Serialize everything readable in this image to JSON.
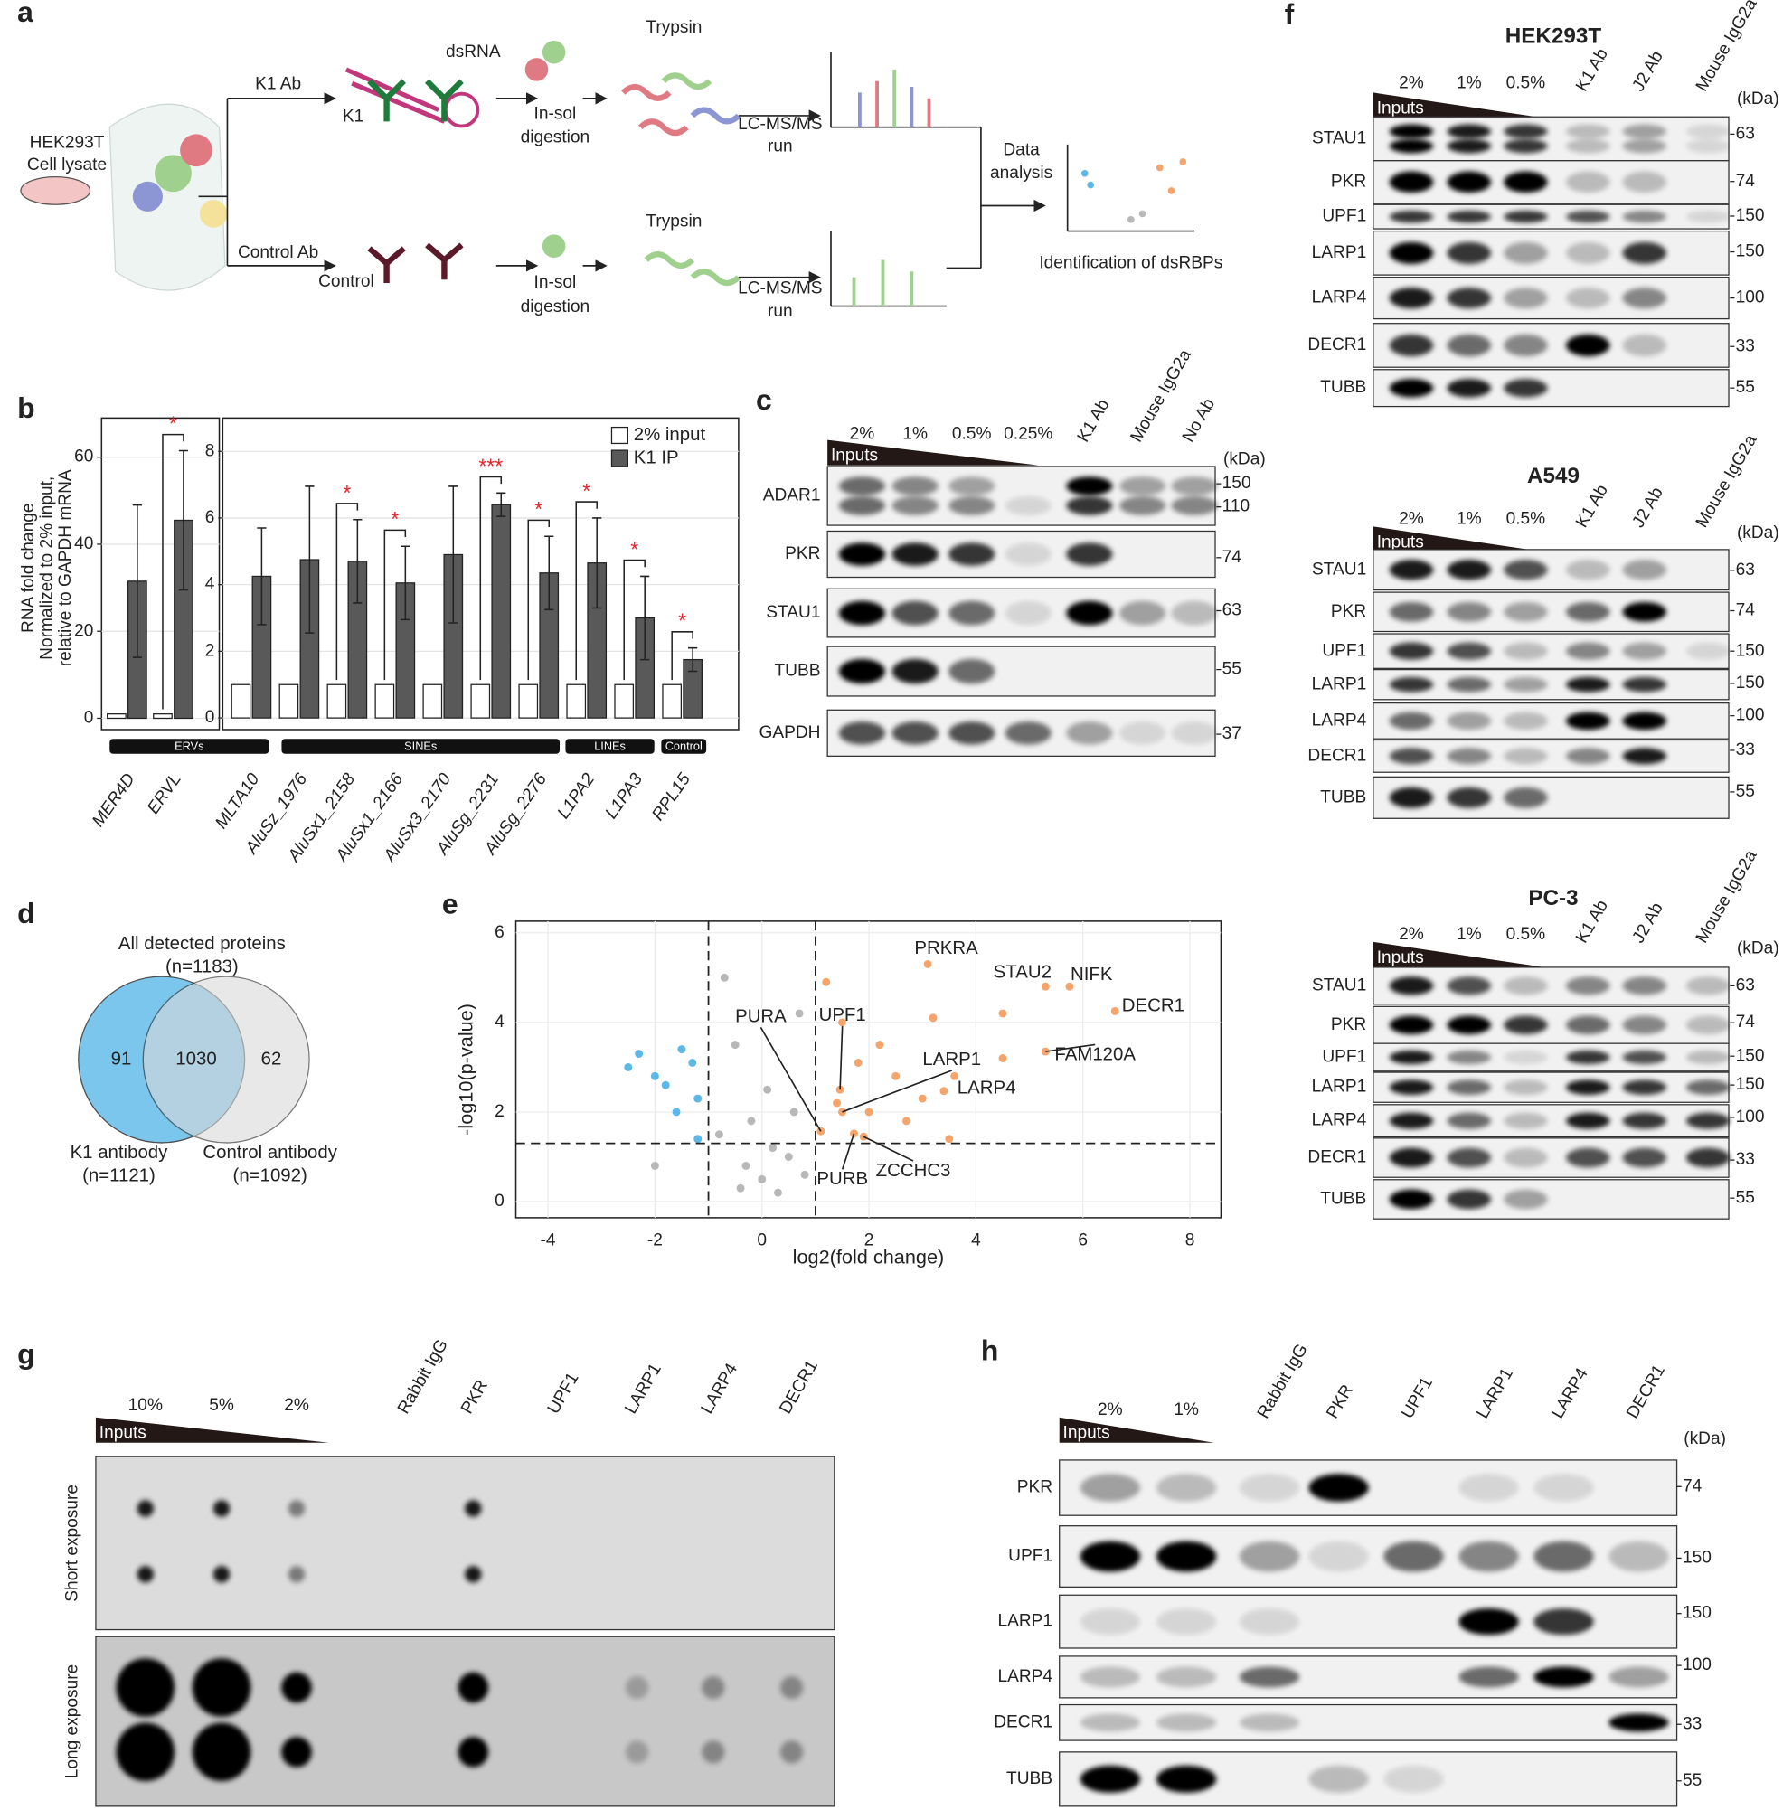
{
  "labels": [
    "a",
    "b",
    "c",
    "d",
    "e",
    "f",
    "g",
    "h"
  ],
  "a": {
    "cell_line": "HEK293T",
    "lysate": "Cell lysate",
    "k1_ab": "K1 Ab",
    "control_ab": "Control Ab",
    "dsrna": "dsRNA",
    "k1": "K1",
    "control": "Control",
    "in_sol": [
      "In-sol",
      "In-sol"
    ],
    "digestion": [
      "digestion",
      "digestion"
    ],
    "trypsin": [
      "Trypsin",
      "Trypsin"
    ],
    "lcms": [
      "LC-MS/MS",
      "LC-MS/MS"
    ],
    "run": [
      "run",
      "run"
    ],
    "data_analysis": [
      "Data",
      "analysis"
    ],
    "identification": "Identification of dsRBPs"
  },
  "b_groups": [
    "ERVs",
    "SINEs",
    "LINEs",
    "Control"
  ],
  "chart_data": [
    {
      "type": "bar",
      "categories": [
        "MER4D",
        "ERVL"
      ],
      "series": [
        {
          "color": "#ffffff",
          "values": [
            1,
            1
          ]
        },
        {
          "color": "#595959",
          "values": [
            31.5,
            45.5
          ],
          "errors": [
            17.5,
            16
          ]
        }
      ],
      "ylim": [
        -2.6,
        69
      ],
      "yticks": [
        0,
        20,
        40,
        60
      ],
      "ylabel": [
        "RNA fold change",
        "Normalized to 2% input,",
        "relative to GAPDH mRNA"
      ],
      "annotations": [
        {
          "category": 1,
          "text": "*"
        }
      ],
      "grid": true
    },
    {
      "type": "bar",
      "categories": [
        "MLTA10",
        "AluSz_1976",
        "AluSx1_2158",
        "AluSx1_2166",
        "AluSx3_2170",
        "AluSg_2231",
        "AluSg_2276",
        "L1PA2",
        "L1PA3",
        "RPL15"
      ],
      "series": [
        {
          "name": "2% input",
          "color": "#ffffff",
          "values": [
            1,
            1,
            1,
            1,
            1,
            1,
            1,
            1,
            1,
            1
          ]
        },
        {
          "name": "K1 IP",
          "color": "#595959",
          "values": [
            4.25,
            4.75,
            4.7,
            4.05,
            4.9,
            6.4,
            4.35,
            4.65,
            3.0,
            1.75
          ],
          "errors": [
            1.45,
            2.2,
            1.25,
            1.1,
            2.05,
            0.35,
            1.1,
            1.35,
            1.25,
            0.35
          ]
        }
      ],
      "ylim": [
        -0.35,
        9
      ],
      "yticks": [
        0,
        2,
        4,
        6,
        8
      ],
      "annotations": [
        {
          "category": 2,
          "text": "*"
        },
        {
          "category": 3,
          "text": "*"
        },
        {
          "category": 5,
          "text": "***"
        },
        {
          "category": 6,
          "text": "*"
        },
        {
          "category": 7,
          "text": "*"
        },
        {
          "category": 8,
          "text": "*"
        },
        {
          "category": 9,
          "text": "*"
        }
      ],
      "grid": true
    },
    {
      "type": "scatter",
      "xlabel": "log2(fold change)",
      "ylabel": "-log10(p-value)",
      "xlim": [
        -4.6,
        8.58
      ],
      "ylim": [
        -0.36,
        6.26
      ],
      "xticks": [
        -4,
        -2,
        0,
        2,
        4,
        6,
        8
      ],
      "yticks": [
        0,
        2,
        4,
        6
      ],
      "grid": true,
      "thresholds": {
        "x": [
          -1,
          1
        ],
        "y": 1.3
      },
      "series": [
        {
          "color": "#5bb8e8",
          "x": [
            -2.3,
            -2.0,
            -1.5,
            -1.3,
            -1.8,
            -1.2,
            -2.5,
            -1.6,
            -1.2
          ],
          "values": [
            3.3,
            2.8,
            3.4,
            3.1,
            2.6,
            2.3,
            3.0,
            2.0,
            1.4
          ]
        },
        {
          "color": "#b8b8b8",
          "x": [
            -0.7,
            -0.5,
            0,
            0.3,
            -0.3,
            0.5,
            -0.8,
            0.6,
            0.2,
            -0.4,
            0.8,
            -2,
            0.1,
            -0.2,
            0.7
          ],
          "values": [
            5.0,
            3.5,
            0.5,
            0.2,
            0.8,
            1.0,
            1.5,
            2.0,
            1.2,
            0.3,
            0.6,
            0.8,
            2.5,
            1.8,
            4.2
          ]
        },
        {
          "color": "#f5a46b",
          "x": [
            1.2,
            1.5,
            2.2,
            2.5,
            3.0,
            3.6,
            4.5,
            4.5,
            2.0,
            1.4,
            3.5,
            2.7,
            1.8,
            3.2
          ],
          "values": [
            4.9,
            4.0,
            3.5,
            2.8,
            2.3,
            2.8,
            4.2,
            3.2,
            2.0,
            2.2,
            1.4,
            1.8,
            3.1,
            4.1
          ]
        }
      ],
      "labeled": [
        {
          "label": "PRKRA",
          "x": 3.1,
          "y": 5.3
        },
        {
          "label": "STAU2",
          "x": 5.3,
          "y": 4.8
        },
        {
          "label": "NIFK",
          "x": 5.75,
          "y": 4.8
        },
        {
          "label": "DECR1",
          "x": 6.6,
          "y": 4.25
        },
        {
          "label": "FAM120A",
          "x": 5.3,
          "y": 3.35
        },
        {
          "label": "LARP4",
          "x": 3.4,
          "y": 2.47
        },
        {
          "label": "LARP1",
          "x": 1.5,
          "y": 2.0
        },
        {
          "label": "UPF1",
          "x": 1.46,
          "y": 2.5
        },
        {
          "label": "PURA",
          "x": 1.1,
          "y": 1.57
        },
        {
          "label": "PURB",
          "x": 1.72,
          "y": 1.52
        },
        {
          "label": "ZCCHC3",
          "x": 1.9,
          "y": 1.45
        }
      ]
    }
  ],
  "c": {
    "lanes": [
      "2%",
      "1%",
      "0.5%",
      "0.25%",
      "K1 Ab",
      "Mouse IgG2a",
      "No Ab"
    ],
    "inputs": "Inputs",
    "kda_title": "(kDa)",
    "rows": [
      "ADAR1",
      "PKR",
      "STAU1",
      "TUBB",
      "GAPDH"
    ],
    "kda": [
      150,
      110,
      74,
      63,
      55,
      37
    ]
  },
  "d": {
    "all": "All detected proteins",
    "all_n": "(n=1183)",
    "left_only": 91,
    "both": 1030,
    "right_only": 62,
    "k1": "K1 antibody",
    "k1_n": "(n=1121)",
    "control": "Control antibody",
    "control_n": "(n=1092)"
  },
  "f": {
    "blocks": [
      {
        "title": "HEK293T",
        "lanes": [
          "2%",
          "1%",
          "0.5%",
          "K1 Ab",
          "J2 Ab",
          "Mouse IgG2a"
        ],
        "inputs": "Inputs",
        "kda_title": "(kDa)",
        "rows": [
          "STAU1",
          "PKR",
          "UPF1",
          "LARP1",
          "LARP4",
          "DECR1",
          "TUBB"
        ],
        "kda": [
          63,
          74,
          150,
          150,
          100,
          33,
          55
        ]
      },
      {
        "title": "A549",
        "lanes": [
          "2%",
          "1%",
          "0.5%",
          "K1 Ab",
          "J2 Ab",
          "Mouse IgG2a"
        ],
        "inputs": "Inputs",
        "kda_title": "(kDa)",
        "rows": [
          "STAU1",
          "PKR",
          "UPF1",
          "LARP1",
          "LARP4",
          "DECR1",
          "TUBB"
        ],
        "kda": [
          63,
          74,
          150,
          150,
          100,
          33,
          55
        ]
      },
      {
        "title": "PC-3",
        "lanes": [
          "2%",
          "1%",
          "0.5%",
          "K1 Ab",
          "J2 Ab",
          "Mouse IgG2a"
        ],
        "inputs": "Inputs",
        "kda_title": "(kDa)",
        "rows": [
          "STAU1",
          "PKR",
          "UPF1",
          "LARP1",
          "LARP4",
          "DECR1",
          "TUBB"
        ],
        "kda": [
          63,
          74,
          150,
          150,
          100,
          33,
          55
        ]
      }
    ]
  },
  "g": {
    "lanes": [
      "10%",
      "5%",
      "2%",
      "Rabbit IgG",
      "PKR",
      "UPF1",
      "LARP1",
      "LARP4",
      "DECR1"
    ],
    "inputs": "Inputs",
    "exposures": [
      "Short exposure",
      "Long exposure"
    ]
  },
  "h": {
    "lanes": [
      "2%",
      "1%",
      "Rabbit IgG",
      "PKR",
      "UPF1",
      "LARP1",
      "LARP4",
      "DECR1"
    ],
    "inputs": "Inputs",
    "kda_title": "(kDa)",
    "rows": [
      "PKR",
      "UPF1",
      "LARP1",
      "LARP4",
      "DECR1",
      "TUBB"
    ],
    "kda": [
      74,
      150,
      150,
      100,
      33,
      55
    ]
  }
}
